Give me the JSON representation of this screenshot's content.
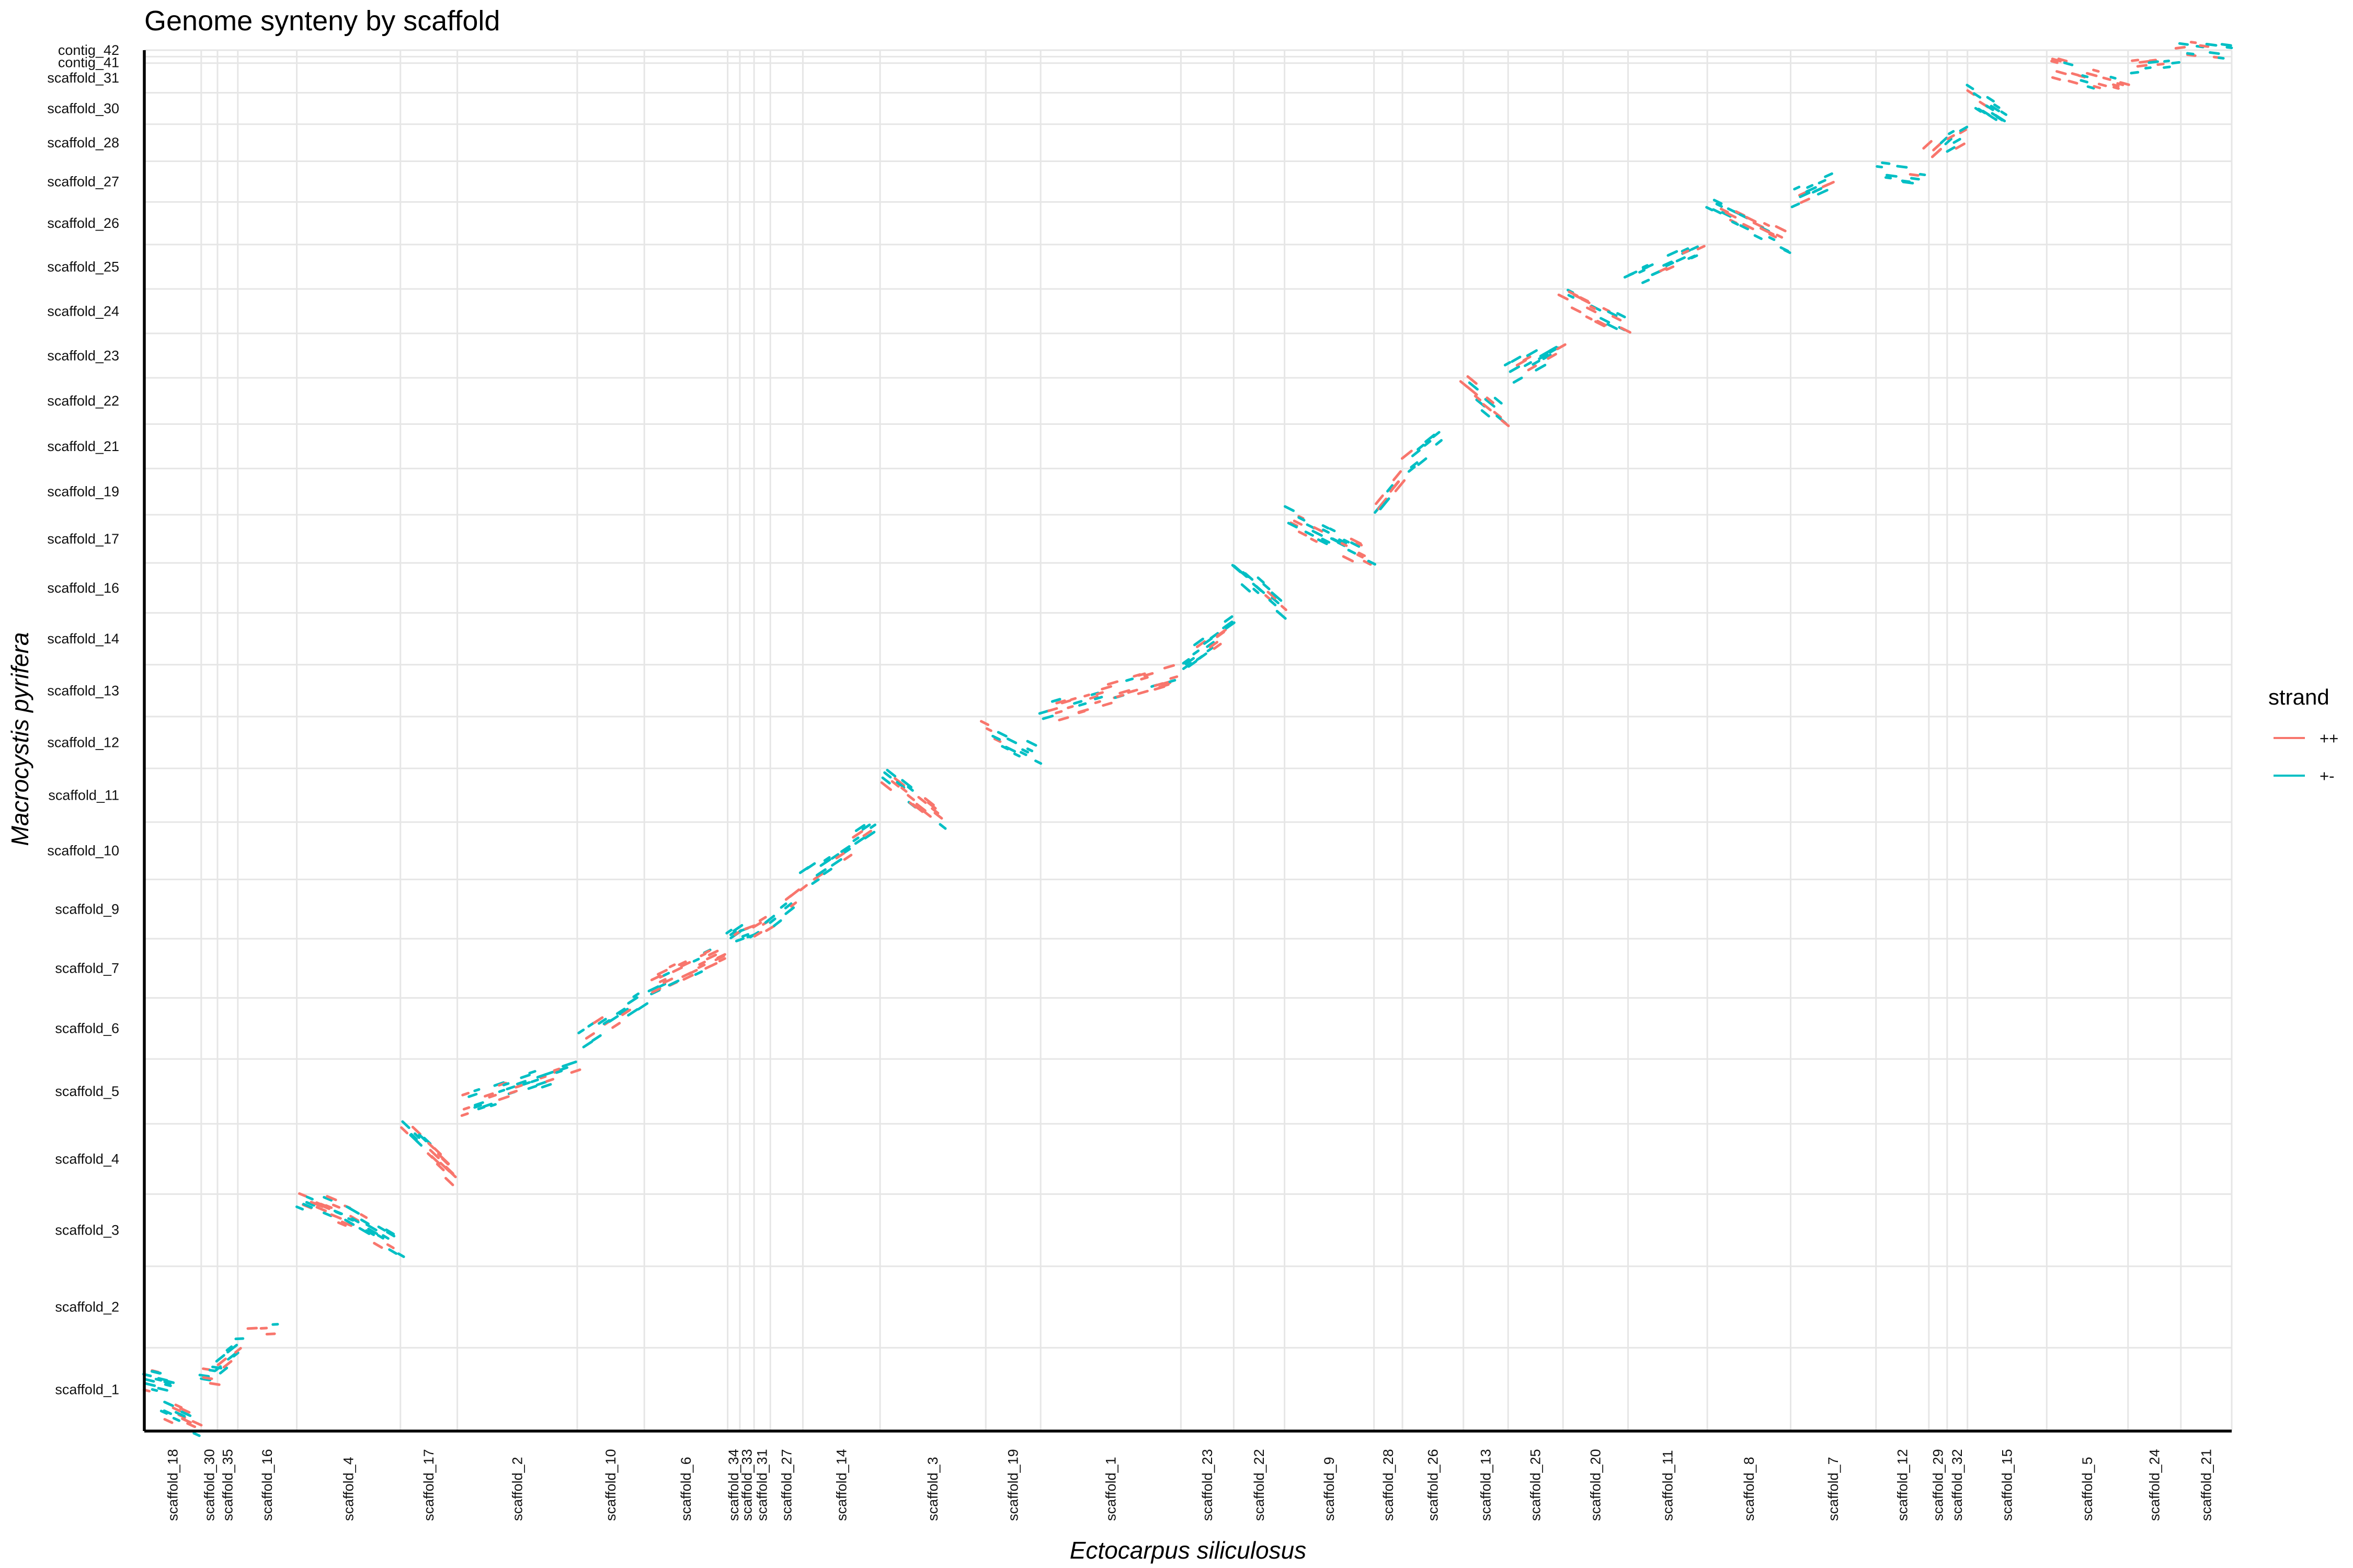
{
  "chart_data": {
    "type": "scatter",
    "title": "Genome synteny by scaffold",
    "xlabel": "Ectocarpus siliculosus",
    "ylabel": "Macrocystis pyrifera",
    "grid": true,
    "legend": {
      "title": "strand",
      "position": "right",
      "entries": [
        {
          "label": "++",
          "color": "#F8766D"
        },
        {
          "label": "+-",
          "color": "#00BFC4"
        }
      ]
    },
    "x_scaffolds": [
      {
        "name": "scaffold_18",
        "start": 0.0,
        "end": 2.8
      },
      {
        "name": "scaffold_30",
        "start": 2.8,
        "end": 3.6
      },
      {
        "name": "scaffold_35",
        "start": 3.6,
        "end": 4.6
      },
      {
        "name": "scaffold_16",
        "start": 4.6,
        "end": 7.5
      },
      {
        "name": "scaffold_4",
        "start": 7.5,
        "end": 12.6
      },
      {
        "name": "scaffold_17",
        "start": 12.6,
        "end": 15.4
      },
      {
        "name": "scaffold_2",
        "start": 15.4,
        "end": 21.3
      },
      {
        "name": "scaffold_10",
        "start": 21.3,
        "end": 24.6
      },
      {
        "name": "scaffold_6",
        "start": 24.6,
        "end": 28.7
      },
      {
        "name": "scaffold_34",
        "start": 28.7,
        "end": 29.3
      },
      {
        "name": "scaffold_33",
        "start": 29.3,
        "end": 30.0
      },
      {
        "name": "scaffold_31",
        "start": 30.0,
        "end": 30.8
      },
      {
        "name": "scaffold_27",
        "start": 30.8,
        "end": 32.4
      },
      {
        "name": "scaffold_14",
        "start": 32.4,
        "end": 36.2
      },
      {
        "name": "scaffold_3",
        "start": 36.2,
        "end": 41.4
      },
      {
        "name": "scaffold_19",
        "start": 41.4,
        "end": 44.1
      },
      {
        "name": "scaffold_1",
        "start": 44.1,
        "end": 51.0
      },
      {
        "name": "scaffold_23",
        "start": 51.0,
        "end": 53.6
      },
      {
        "name": "scaffold_22",
        "start": 53.6,
        "end": 56.1
      },
      {
        "name": "scaffold_9",
        "start": 56.1,
        "end": 60.5
      },
      {
        "name": "scaffold_28",
        "start": 60.5,
        "end": 61.9
      },
      {
        "name": "scaffold_26",
        "start": 61.9,
        "end": 64.9
      },
      {
        "name": "scaffold_13",
        "start": 64.9,
        "end": 67.1
      },
      {
        "name": "scaffold_25",
        "start": 67.1,
        "end": 69.8
      },
      {
        "name": "scaffold_20",
        "start": 69.8,
        "end": 73.0
      },
      {
        "name": "scaffold_11",
        "start": 73.0,
        "end": 76.9
      },
      {
        "name": "scaffold_8",
        "start": 76.9,
        "end": 81.0
      },
      {
        "name": "scaffold_7",
        "start": 81.0,
        "end": 85.2
      },
      {
        "name": "scaffold_12",
        "start": 85.2,
        "end": 87.8
      },
      {
        "name": "scaffold_29",
        "start": 87.8,
        "end": 88.7
      },
      {
        "name": "scaffold_32",
        "start": 88.7,
        "end": 89.7
      },
      {
        "name": "scaffold_15",
        "start": 89.7,
        "end": 93.6
      },
      {
        "name": "scaffold_5",
        "start": 93.6,
        "end": 97.6
      },
      {
        "name": "scaffold_24",
        "start": 97.6,
        "end": 100.2
      },
      {
        "name": "scaffold_21",
        "start": 100.2,
        "end": 102.7
      }
    ],
    "y_scaffolds": [
      {
        "name": "scaffold_1",
        "start": 0.0,
        "end": 4.5
      },
      {
        "name": "scaffold_2",
        "start": 4.5,
        "end": 8.9
      },
      {
        "name": "scaffold_3",
        "start": 8.9,
        "end": 12.8
      },
      {
        "name": "scaffold_4",
        "start": 12.8,
        "end": 16.6
      },
      {
        "name": "scaffold_5",
        "start": 16.6,
        "end": 20.1
      },
      {
        "name": "scaffold_6",
        "start": 20.1,
        "end": 23.4
      },
      {
        "name": "scaffold_7",
        "start": 23.4,
        "end": 26.6
      },
      {
        "name": "scaffold_9",
        "start": 26.6,
        "end": 29.8
      },
      {
        "name": "scaffold_10",
        "start": 29.8,
        "end": 32.9
      },
      {
        "name": "scaffold_11",
        "start": 32.9,
        "end": 35.8
      },
      {
        "name": "scaffold_12",
        "start": 35.8,
        "end": 38.6
      },
      {
        "name": "scaffold_13",
        "start": 38.6,
        "end": 41.4
      },
      {
        "name": "scaffold_14",
        "start": 41.4,
        "end": 44.2
      },
      {
        "name": "scaffold_16",
        "start": 44.2,
        "end": 46.9
      },
      {
        "name": "scaffold_17",
        "start": 46.9,
        "end": 49.5
      },
      {
        "name": "scaffold_19",
        "start": 49.5,
        "end": 52.0
      },
      {
        "name": "scaffold_21",
        "start": 52.0,
        "end": 54.4
      },
      {
        "name": "scaffold_22",
        "start": 54.4,
        "end": 56.9
      },
      {
        "name": "scaffold_23",
        "start": 56.9,
        "end": 59.3
      },
      {
        "name": "scaffold_24",
        "start": 59.3,
        "end": 61.7
      },
      {
        "name": "scaffold_25",
        "start": 61.7,
        "end": 64.1
      },
      {
        "name": "scaffold_26",
        "start": 64.1,
        "end": 66.4
      },
      {
        "name": "scaffold_27",
        "start": 66.4,
        "end": 68.6
      },
      {
        "name": "scaffold_28",
        "start": 68.6,
        "end": 70.6
      },
      {
        "name": "scaffold_30",
        "start": 70.6,
        "end": 72.3
      },
      {
        "name": "scaffold_31",
        "start": 72.3,
        "end": 73.9
      },
      {
        "name": "contig_41",
        "start": 73.9,
        "end": 74.25
      },
      {
        "name": "contig_42",
        "start": 74.25,
        "end": 74.6
      }
    ],
    "xlim": [
      0,
      102.7
    ],
    "ylim": [
      0,
      74.6
    ],
    "blocks": [
      {
        "x_scaffold": "scaffold_18",
        "y_scaffold": "scaffold_1",
        "x": [
          0.1,
          1.2
        ],
        "y": [
          2.8,
          2.5
        ],
        "strand": "+-",
        "n": 14
      },
      {
        "x_scaffold": "scaffold_18",
        "y_scaffold": "scaffold_1",
        "x": [
          1.0,
          2.6
        ],
        "y": [
          1.1,
          0.3
        ],
        "strand": "++",
        "n": 16
      },
      {
        "x_scaffold": "scaffold_30",
        "y_scaffold": "scaffold_1",
        "x": [
          2.9,
          3.5
        ],
        "y": [
          3.1,
          3.0
        ],
        "strand": "+-",
        "n": 8
      },
      {
        "x_scaffold": "scaffold_35",
        "y_scaffold": "scaffold_1",
        "x": [
          3.7,
          4.5
        ],
        "y": [
          3.6,
          4.3
        ],
        "strand": "+-",
        "n": 10
      },
      {
        "x_scaffold": "scaffold_16",
        "y_scaffold": "scaffold_2",
        "x": [
          4.8,
          6.6
        ],
        "y": [
          5.1,
          5.2
        ],
        "strand": "+-",
        "n": 5
      },
      {
        "x_scaffold": "scaffold_4",
        "y_scaffold": "scaffold_3",
        "x": [
          7.8,
          10.0
        ],
        "y": [
          12.6,
          11.6
        ],
        "strand": "++",
        "n": 24
      },
      {
        "x_scaffold": "scaffold_4",
        "y_scaffold": "scaffold_3",
        "x": [
          10.0,
          12.5
        ],
        "y": [
          11.6,
          10.0
        ],
        "strand": "+-",
        "n": 20
      },
      {
        "x_scaffold": "scaffold_17",
        "y_scaffold": "scaffold_4",
        "x": [
          12.9,
          15.2
        ],
        "y": [
          16.2,
          13.8
        ],
        "strand": "++",
        "n": 22
      },
      {
        "x_scaffold": "scaffold_2",
        "y_scaffold": "scaffold_5",
        "x": [
          15.7,
          21.1
        ],
        "y": [
          17.6,
          19.6
        ],
        "strand": "+-",
        "n": 40
      },
      {
        "x_scaffold": "scaffold_10",
        "y_scaffold": "scaffold_6",
        "x": [
          21.6,
          24.4
        ],
        "y": [
          21.1,
          23.1
        ],
        "strand": "+-",
        "n": 18
      },
      {
        "x_scaffold": "scaffold_6",
        "y_scaffold": "scaffold_7",
        "x": [
          24.9,
          28.5
        ],
        "y": [
          24.0,
          25.9
        ],
        "strand": "++",
        "n": 34
      },
      {
        "x_scaffold": "scaffold_34",
        "y_scaffold": "scaffold_9",
        "x": [
          28.8,
          29.2
        ],
        "y": [
          26.7,
          27.0
        ],
        "strand": "+-",
        "n": 5
      },
      {
        "x_scaffold": "scaffold_33",
        "y_scaffold": "scaffold_9",
        "x": [
          29.4,
          29.9
        ],
        "y": [
          27.0,
          27.2
        ],
        "strand": "+-",
        "n": 5
      },
      {
        "x_scaffold": "scaffold_31",
        "y_scaffold": "scaffold_9",
        "x": [
          30.1,
          30.7
        ],
        "y": [
          27.2,
          27.6
        ],
        "strand": "++",
        "n": 6
      },
      {
        "x_scaffold": "scaffold_27",
        "y_scaffold": "scaffold_9",
        "x": [
          30.9,
          32.3
        ],
        "y": [
          27.6,
          28.8
        ],
        "strand": "+-",
        "n": 10
      },
      {
        "x_scaffold": "scaffold_14",
        "y_scaffold": "scaffold_10",
        "x": [
          32.6,
          36.0
        ],
        "y": [
          30.0,
          32.5
        ],
        "strand": "+-",
        "n": 22
      },
      {
        "x_scaffold": "scaffold_3",
        "y_scaffold": "scaffold_11",
        "x": [
          36.4,
          39.2
        ],
        "y": [
          35.5,
          33.1
        ],
        "strand": "++",
        "n": 22
      },
      {
        "x_scaffold": "scaffold_19",
        "y_scaffold": "scaffold_12",
        "x": [
          41.5,
          43.9
        ],
        "y": [
          37.8,
          36.5
        ],
        "strand": "+-",
        "n": 14
      },
      {
        "x_scaffold": "scaffold_1",
        "y_scaffold": "scaffold_13",
        "x": [
          44.3,
          50.8
        ],
        "y": [
          38.8,
          40.9
        ],
        "strand": "++",
        "n": 44
      },
      {
        "x_scaffold": "scaffold_23",
        "y_scaffold": "scaffold_14",
        "x": [
          51.2,
          53.5
        ],
        "y": [
          41.6,
          43.4
        ],
        "strand": "+-",
        "n": 20
      },
      {
        "x_scaffold": "scaffold_22",
        "y_scaffold": "scaffold_16",
        "x": [
          53.8,
          56.0
        ],
        "y": [
          46.6,
          44.5
        ],
        "strand": "+-",
        "n": 18
      },
      {
        "x_scaffold": "scaffold_9",
        "y_scaffold": "scaffold_17",
        "x": [
          56.3,
          60.3
        ],
        "y": [
          49.3,
          47.1
        ],
        "strand": "+-",
        "n": 32
      },
      {
        "x_scaffold": "scaffold_28",
        "y_scaffold": "scaffold_19",
        "x": [
          60.6,
          61.8
        ],
        "y": [
          49.8,
          51.4
        ],
        "strand": "++",
        "n": 10
      },
      {
        "x_scaffold": "scaffold_26",
        "y_scaffold": "scaffold_21",
        "x": [
          62.0,
          63.6
        ],
        "y": [
          52.2,
          53.6
        ],
        "strand": "+-",
        "n": 10
      },
      {
        "x_scaffold": "scaffold_13",
        "y_scaffold": "scaffold_22",
        "x": [
          65.0,
          67.0
        ],
        "y": [
          56.5,
          54.7
        ],
        "strand": "++",
        "n": 14
      },
      {
        "x_scaffold": "scaffold_25",
        "y_scaffold": "scaffold_23",
        "x": [
          67.2,
          69.6
        ],
        "y": [
          57.1,
          58.6
        ],
        "strand": "+-",
        "n": 18
      },
      {
        "x_scaffold": "scaffold_20",
        "y_scaffold": "scaffold_24",
        "x": [
          69.9,
          72.8
        ],
        "y": [
          61.2,
          59.6
        ],
        "strand": "++",
        "n": 22
      },
      {
        "x_scaffold": "scaffold_11",
        "y_scaffold": "scaffold_25",
        "x": [
          73.2,
          76.6
        ],
        "y": [
          62.1,
          63.8
        ],
        "strand": "+-",
        "n": 22
      },
      {
        "x_scaffold": "scaffold_8",
        "y_scaffold": "scaffold_26",
        "x": [
          77.1,
          80.8
        ],
        "y": [
          66.2,
          64.2
        ],
        "strand": "++",
        "n": 28
      },
      {
        "x_scaffold": "scaffold_7",
        "y_scaffold": "scaffold_27",
        "x": [
          81.2,
          83.0
        ],
        "y": [
          66.7,
          67.6
        ],
        "strand": "+-",
        "n": 14
      },
      {
        "x_scaffold": "scaffold_12",
        "y_scaffold": "scaffold_27",
        "x": [
          85.4,
          87.5
        ],
        "y": [
          68.1,
          67.8
        ],
        "strand": "+-",
        "n": 10
      },
      {
        "x_scaffold": "scaffold_29",
        "y_scaffold": "scaffold_28",
        "x": [
          87.9,
          88.6
        ],
        "y": [
          69.0,
          69.7
        ],
        "strand": "++",
        "n": 6
      },
      {
        "x_scaffold": "scaffold_32",
        "y_scaffold": "scaffold_28",
        "x": [
          88.8,
          89.6
        ],
        "y": [
          69.6,
          70.1
        ],
        "strand": "+-",
        "n": 7
      },
      {
        "x_scaffold": "scaffold_15",
        "y_scaffold": "scaffold_30",
        "x": [
          89.9,
          91.6
        ],
        "y": [
          72.1,
          70.9
        ],
        "strand": "+-",
        "n": 16
      },
      {
        "x_scaffold": "scaffold_5",
        "y_scaffold": "scaffold_31",
        "x": [
          93.8,
          97.4
        ],
        "y": [
          73.7,
          72.6
        ],
        "strand": "++",
        "n": 22
      },
      {
        "x_scaffold": "scaffold_24",
        "y_scaffold": "contig_41",
        "x": [
          97.8,
          100.0
        ],
        "y": [
          73.9,
          74.2
        ],
        "strand": "+-",
        "n": 12
      },
      {
        "x_scaffold": "scaffold_21",
        "y_scaffold": "contig_42",
        "x": [
          100.4,
          102.5
        ],
        "y": [
          74.6,
          74.3
        ],
        "strand": "+-",
        "n": 12
      }
    ]
  }
}
